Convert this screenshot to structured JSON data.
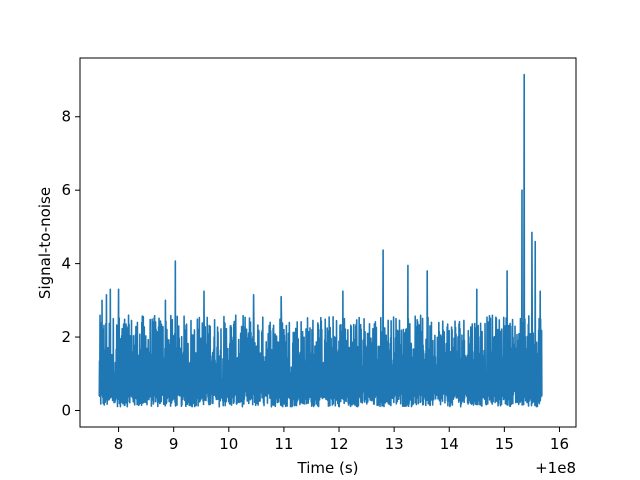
{
  "chart_data": {
    "type": "line",
    "title": "",
    "xlabel": "Time (s)",
    "ylabel": "Signal-to-noise",
    "x_offset_label": "+1e8",
    "xlim": [
      7.3,
      16.3
    ],
    "ylim": [
      -0.45,
      9.6
    ],
    "x_ticks": [
      8,
      9,
      10,
      11,
      12,
      13,
      14,
      15,
      16
    ],
    "x_tick_labels": [
      "8",
      "9",
      "10",
      "11",
      "12",
      "13",
      "14",
      "15",
      "16"
    ],
    "y_ticks": [
      0,
      2,
      4,
      6,
      8
    ],
    "y_tick_labels": [
      "0",
      "2",
      "4",
      "6",
      "8"
    ],
    "grid": false,
    "series_color": "#1f77b4",
    "series": [
      {
        "x_range": [
          7.65,
          15.68
        ],
        "baseline_band": [
          0.1,
          2.6
        ],
        "peaks": [
          {
            "x": 7.7,
            "y": 3.0
          },
          {
            "x": 7.78,
            "y": 3.15
          },
          {
            "x": 7.85,
            "y": 3.3
          },
          {
            "x": 8.0,
            "y": 3.3
          },
          {
            "x": 8.85,
            "y": 3.0
          },
          {
            "x": 9.03,
            "y": 4.07
          },
          {
            "x": 9.55,
            "y": 3.25
          },
          {
            "x": 10.45,
            "y": 3.15
          },
          {
            "x": 10.95,
            "y": 3.1
          },
          {
            "x": 12.07,
            "y": 3.25
          },
          {
            "x": 12.8,
            "y": 4.37
          },
          {
            "x": 13.25,
            "y": 3.95
          },
          {
            "x": 13.6,
            "y": 3.8
          },
          {
            "x": 14.5,
            "y": 3.3
          },
          {
            "x": 15.05,
            "y": 3.8
          },
          {
            "x": 15.32,
            "y": 6.0
          },
          {
            "x": 15.36,
            "y": 9.15
          },
          {
            "x": 15.5,
            "y": 4.85
          },
          {
            "x": 15.56,
            "y": 4.6
          },
          {
            "x": 15.65,
            "y": 3.25
          }
        ]
      }
    ]
  }
}
